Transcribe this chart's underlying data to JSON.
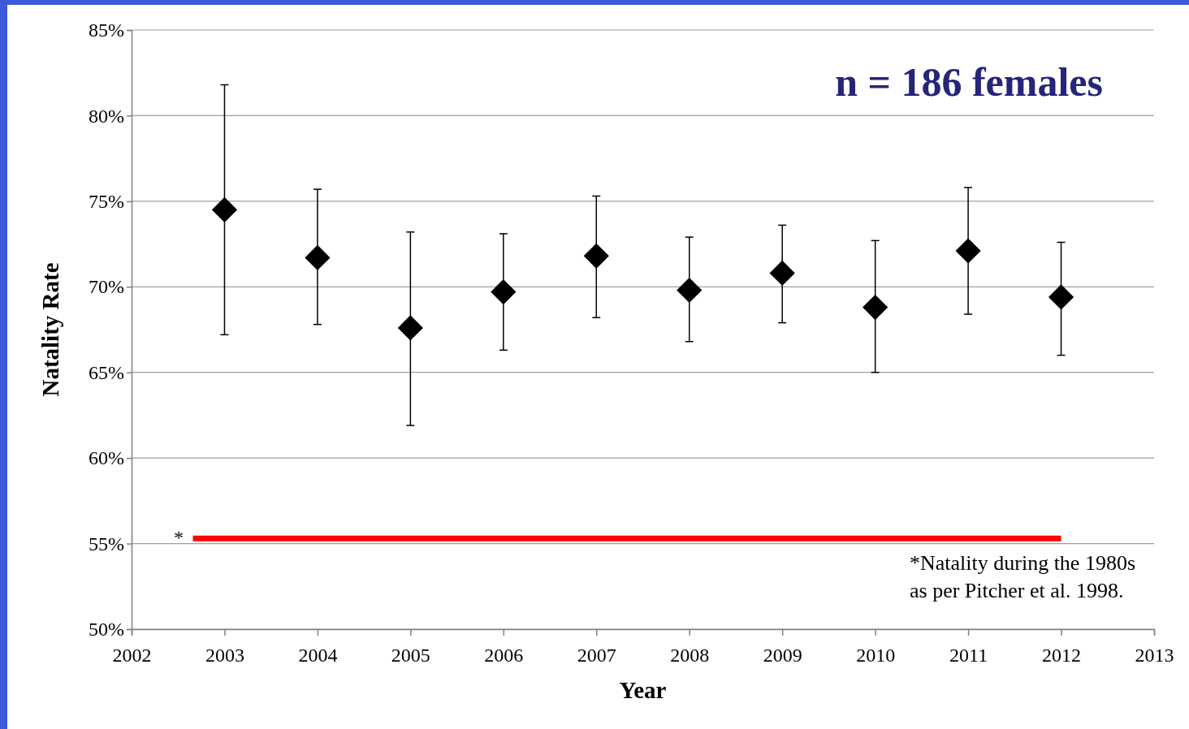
{
  "chart_data": {
    "type": "scatter",
    "xlabel": "Year",
    "ylabel": "Natality Rate",
    "xlim": [
      2002,
      2013
    ],
    "xticks": [
      2002,
      2003,
      2004,
      2005,
      2006,
      2007,
      2008,
      2009,
      2010,
      2011,
      2012,
      2013
    ],
    "ylim": [
      50,
      85
    ],
    "yticks": [
      {
        "value": 50,
        "label": "50%"
      },
      {
        "value": 55,
        "label": "55%"
      },
      {
        "value": 60,
        "label": "60%"
      },
      {
        "value": 65,
        "label": "65%"
      },
      {
        "value": 70,
        "label": "70%"
      },
      {
        "value": 75,
        "label": "75%"
      },
      {
        "value": 80,
        "label": "80%"
      },
      {
        "value": 85,
        "label": "85%"
      }
    ],
    "grid": "y",
    "marker": "diamond",
    "series": [
      {
        "color": "#000000",
        "x": [
          2003,
          2004,
          2005,
          2006,
          2007,
          2008,
          2009,
          2010,
          2011,
          2012
        ],
        "values": [
          74.5,
          71.7,
          67.6,
          69.7,
          71.8,
          69.8,
          70.8,
          68.8,
          72.1,
          69.4
        ],
        "errors": [
          [
            67.2,
            81.8
          ],
          [
            67.8,
            75.7
          ],
          [
            61.9,
            73.2
          ],
          [
            66.3,
            73.1
          ],
          [
            68.2,
            75.3
          ],
          [
            66.8,
            72.9
          ],
          [
            67.9,
            73.6
          ],
          [
            65.0,
            72.7
          ],
          [
            68.4,
            75.8
          ],
          [
            66.0,
            72.6
          ]
        ]
      },
      {
        "type": "line",
        "color": "#ff0000",
        "marker": "none",
        "x": [
          2002.66,
          2012
        ],
        "values": [
          55.3,
          55.3
        ]
      }
    ],
    "annotations": [
      "n = 186 females",
      "*Natality during the 1980s\nas per Pitcher et al. 1998.",
      "*"
    ]
  }
}
